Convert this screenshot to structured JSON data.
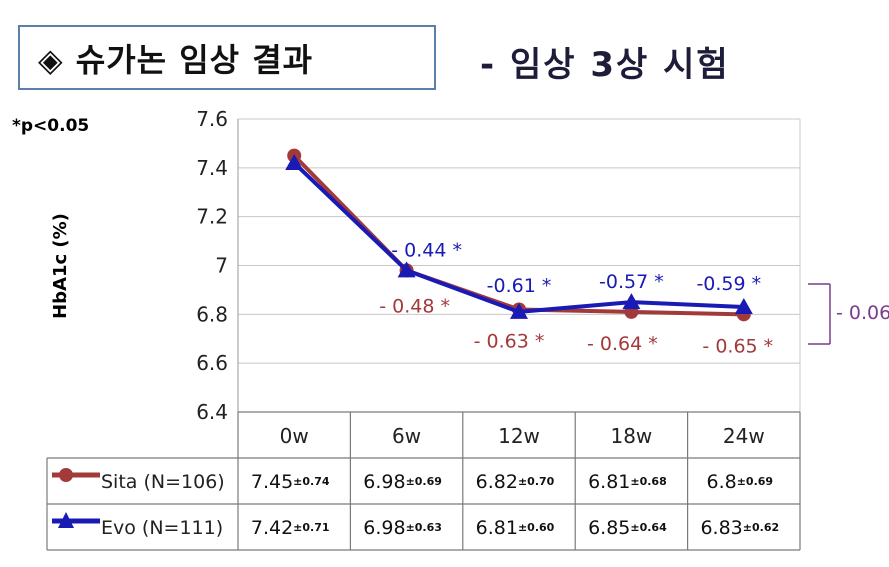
{
  "header": {
    "title": "◈ 슈가논 임상 결과",
    "subtitle": "- 임상 3상 시험",
    "p_note": "*p<0.05"
  },
  "chart_data": {
    "type": "line",
    "ylabel": "HbA1c (%)",
    "ylim": [
      6.4,
      7.6
    ],
    "yticks": [
      "6.4",
      "6.6",
      "6.8",
      "7",
      "7.2",
      "7.4",
      "7.6"
    ],
    "ytick_values": [
      6.4,
      6.6,
      6.8,
      7.0,
      7.2,
      7.4,
      7.6
    ],
    "categories": [
      "0w",
      "6w",
      "12w",
      "18w",
      "24w"
    ],
    "grid": true,
    "series": [
      {
        "name": "Sita (N=106)",
        "color": "#a33a3a",
        "marker": "circle",
        "values": [
          7.45,
          6.98,
          6.82,
          6.81,
          6.8
        ],
        "table_values": [
          "7.45",
          "6.98",
          "6.82",
          "6.81",
          "6.8"
        ],
        "sd": [
          "±0.74",
          "±0.69",
          "±0.70",
          "±0.68",
          "±0.69"
        ],
        "annotations": [
          {
            "index": 1,
            "text": "- 0.48 *"
          },
          {
            "index": 2,
            "text": "- 0.63 *"
          },
          {
            "index": 3,
            "text": "- 0.64 *"
          },
          {
            "index": 4,
            "text": "- 0.65 *"
          }
        ]
      },
      {
        "name": "Evo (N=111)",
        "color": "#1a1ab5",
        "marker": "triangle",
        "values": [
          7.42,
          6.98,
          6.81,
          6.85,
          6.83
        ],
        "table_values": [
          "7.42",
          "6.98",
          "6.81",
          "6.85",
          "6.83"
        ],
        "sd": [
          "±0.71",
          "±0.63",
          "±0.60",
          "±0.64",
          "±0.62"
        ],
        "annotations": [
          {
            "index": 1,
            "text": "- 0.44 *"
          },
          {
            "index": 2,
            "text": "-0.61 *"
          },
          {
            "index": 3,
            "text": "-0.57 *"
          },
          {
            "index": 4,
            "text": "-0.59 *"
          }
        ]
      }
    ],
    "difference_bracket": {
      "text": "- 0.06",
      "color": "#7a3d8c"
    }
  }
}
